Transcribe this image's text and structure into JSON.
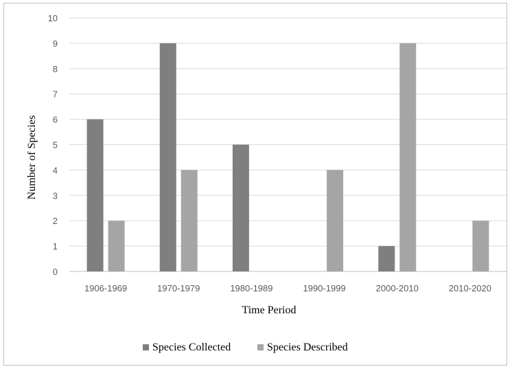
{
  "chart_data": {
    "type": "bar",
    "title": "",
    "xlabel": "Time Period",
    "ylabel": "Number of Species",
    "categories": [
      "1906-1969",
      "1970-1979",
      "1980-1989",
      "1990-1999",
      "2000-2010",
      "2010-2020"
    ],
    "series": [
      {
        "name": "Species Collected",
        "values": [
          6,
          9,
          5,
          0,
          1,
          0
        ],
        "color": "#7f7f7f"
      },
      {
        "name": "Species Described",
        "values": [
          2,
          4,
          0,
          4,
          9,
          2
        ],
        "color": "#a5a5a5"
      }
    ],
    "ylim": [
      0,
      10
    ],
    "yticks": [
      "0",
      "1",
      "2",
      "3",
      "4",
      "5",
      "6",
      "7",
      "8",
      "9",
      "10"
    ],
    "grid": true,
    "legend_position": "bottom",
    "gridline_color": "#d9d9d9"
  }
}
